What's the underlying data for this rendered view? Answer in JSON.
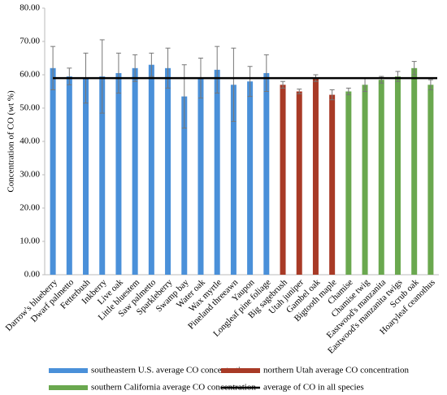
{
  "chart_data": {
    "type": "bar",
    "y_label": "Concentration of CO (wt %)",
    "categories": [
      "Darrow's blueberry",
      "Dwarf palmetto",
      "Fetterbush",
      "Inkberry",
      "Live oak",
      "Little bluestem",
      "Saw palmetto",
      "Sparkleberry",
      "Swamp bay",
      "Water oak",
      "Wax myrtle",
      "Pineland threeawn",
      "Yaupon",
      "Longleaf pine foliage",
      "Big sagebrush",
      "Utah juniper",
      "Gambel oak",
      "Bigtooth maple",
      "Chamise",
      "Chamise twig",
      "Eastwood's manzanita",
      "Eastwood's manzanita twigs",
      "Scrub oak",
      "Hoaryleaf ceanothus"
    ],
    "series": [
      {
        "name": "southeastern U.S. average CO concentration",
        "color": "#4a90d9",
        "values": [
          62,
          59.5,
          59,
          59.5,
          60.5,
          62,
          63,
          62,
          53.5,
          59,
          61.5,
          57,
          58,
          60.5,
          null,
          null,
          null,
          null,
          null,
          null,
          null,
          null,
          null,
          null
        ],
        "errors": [
          6.5,
          2.5,
          7.5,
          11,
          6,
          4,
          3.5,
          6,
          9.5,
          6,
          7,
          11,
          4.5,
          5.5,
          null,
          null,
          null,
          null,
          null,
          null,
          null,
          null,
          null,
          null
        ]
      },
      {
        "name": "northern Utah average CO concentration",
        "color": "#a83a26",
        "values": [
          null,
          null,
          null,
          null,
          null,
          null,
          null,
          null,
          null,
          null,
          null,
          null,
          null,
          null,
          57,
          55,
          59,
          54,
          null,
          null,
          null,
          null,
          null,
          null
        ],
        "errors": [
          null,
          null,
          null,
          null,
          null,
          null,
          null,
          null,
          null,
          null,
          null,
          null,
          null,
          null,
          1,
          0.7,
          1,
          1.5,
          null,
          null,
          null,
          null,
          null,
          null
        ]
      },
      {
        "name": "southern California average CO concentration",
        "color": "#6aa84f",
        "values": [
          null,
          null,
          null,
          null,
          null,
          null,
          null,
          null,
          null,
          null,
          null,
          null,
          null,
          null,
          null,
          null,
          null,
          null,
          55,
          57,
          58.5,
          59.5,
          62,
          57
        ],
        "errors": [
          null,
          null,
          null,
          null,
          null,
          null,
          null,
          null,
          null,
          null,
          null,
          null,
          null,
          null,
          null,
          null,
          null,
          null,
          1,
          2,
          1,
          1.5,
          2,
          1.5
        ]
      }
    ],
    "reference_line": {
      "name": "average of CO in all species",
      "value": 59,
      "color": "#000000"
    },
    "ylim": [
      0,
      80
    ],
    "yticks": [
      {
        "value": 0,
        "label": "0.00"
      },
      {
        "value": 10,
        "label": "10.00"
      },
      {
        "value": 20,
        "label": "20.00"
      },
      {
        "value": 30,
        "label": "30.00"
      },
      {
        "value": 40,
        "label": "40.00"
      },
      {
        "value": 50,
        "label": "50.00"
      },
      {
        "value": 60,
        "label": "60.00"
      },
      {
        "value": 70,
        "label": "70.00"
      },
      {
        "value": 80,
        "label": "80.00"
      }
    ],
    "grid": false
  }
}
